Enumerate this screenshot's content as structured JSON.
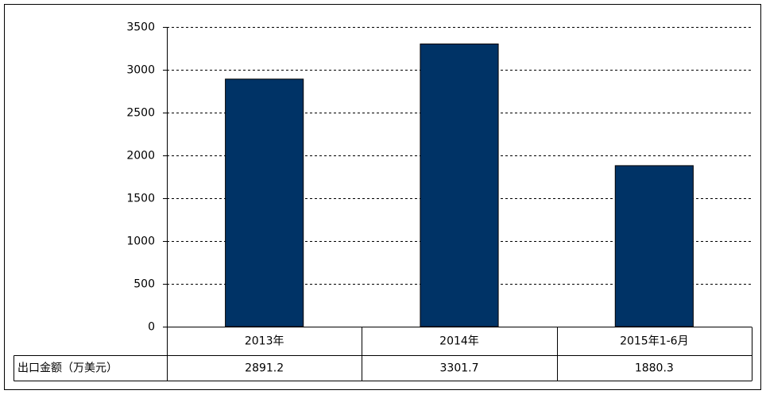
{
  "chart_data": {
    "type": "bar",
    "categories": [
      "2013年",
      "2014年",
      "2015年1-6月"
    ],
    "series": [
      {
        "name": "出口金额（万美元）",
        "color": "#003366",
        "values": [
          2891.2,
          3301.7,
          1880.3
        ]
      }
    ],
    "ylim": [
      0,
      3500
    ],
    "yticks": [
      0,
      500,
      1000,
      1500,
      2000,
      2500,
      3000,
      3500
    ],
    "grid": true,
    "data_table": true
  }
}
